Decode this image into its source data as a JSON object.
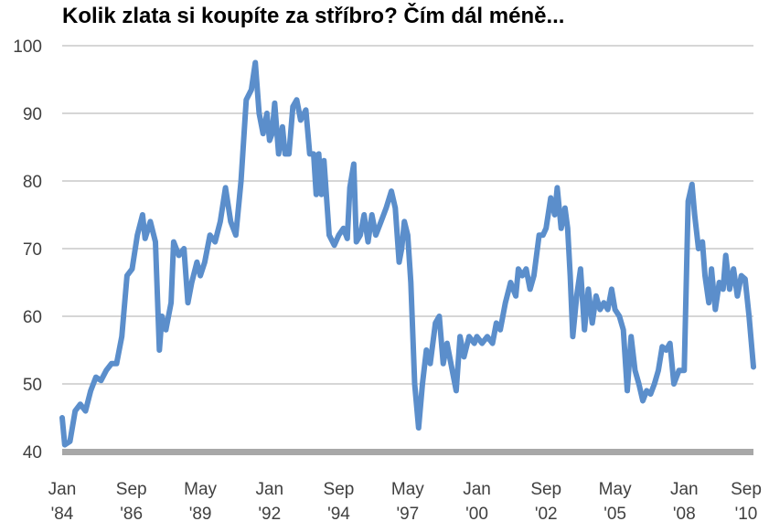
{
  "chart_data": {
    "type": "line",
    "title": "Kolik zlata si koupíte za stříbro? Čím dál méně...",
    "xlabel": "",
    "ylabel": "",
    "ylim": [
      40,
      100
    ],
    "y_ticks": [
      "40",
      "50",
      "60",
      "70",
      "80",
      "90",
      "100"
    ],
    "grid": true,
    "x_ticks": [
      {
        "month": "Jan",
        "year": "'84",
        "t": 1984.0
      },
      {
        "month": "Sep",
        "year": "'86",
        "t": 1986.67
      },
      {
        "month": "May",
        "year": "'89",
        "t": 1989.33
      },
      {
        "month": "Jan",
        "year": "'92",
        "t": 1992.0
      },
      {
        "month": "Sep",
        "year": "'94",
        "t": 1994.67
      },
      {
        "month": "May",
        "year": "'97",
        "t": 1997.33
      },
      {
        "month": "Jan",
        "year": "'00",
        "t": 2000.0
      },
      {
        "month": "Sep",
        "year": "'02",
        "t": 2002.67
      },
      {
        "month": "May",
        "year": "'05",
        "t": 2005.33
      },
      {
        "month": "Jan",
        "year": "'08",
        "t": 2008.0
      },
      {
        "month": "Sep",
        "year": "'10",
        "t": 2010.67
      }
    ],
    "series": [
      {
        "color": "#5b8ecb",
        "points": [
          [
            1984.0,
            45
          ],
          [
            1984.1,
            41
          ],
          [
            1984.3,
            41.5
          ],
          [
            1984.5,
            46
          ],
          [
            1984.7,
            47
          ],
          [
            1984.9,
            46
          ],
          [
            1985.1,
            49
          ],
          [
            1985.3,
            51
          ],
          [
            1985.5,
            50.5
          ],
          [
            1985.7,
            52
          ],
          [
            1985.9,
            53
          ],
          [
            1986.1,
            53
          ],
          [
            1986.3,
            57
          ],
          [
            1986.5,
            66
          ],
          [
            1986.7,
            67
          ],
          [
            1986.9,
            72
          ],
          [
            1987.1,
            75
          ],
          [
            1987.2,
            71.5
          ],
          [
            1987.4,
            74
          ],
          [
            1987.6,
            71
          ],
          [
            1987.75,
            55
          ],
          [
            1987.85,
            60
          ],
          [
            1988.0,
            58
          ],
          [
            1988.2,
            62
          ],
          [
            1988.3,
            71
          ],
          [
            1988.5,
            69
          ],
          [
            1988.7,
            70
          ],
          [
            1988.85,
            62
          ],
          [
            1989.0,
            65
          ],
          [
            1989.2,
            68
          ],
          [
            1989.33,
            66
          ],
          [
            1989.5,
            68
          ],
          [
            1989.7,
            72
          ],
          [
            1989.9,
            71
          ],
          [
            1990.1,
            74
          ],
          [
            1990.3,
            79
          ],
          [
            1990.5,
            74
          ],
          [
            1990.7,
            72
          ],
          [
            1990.9,
            80
          ],
          [
            1991.1,
            92
          ],
          [
            1991.3,
            93.5
          ],
          [
            1991.45,
            97.5
          ],
          [
            1991.6,
            90
          ],
          [
            1991.75,
            87
          ],
          [
            1991.9,
            90
          ],
          [
            1992.0,
            86
          ],
          [
            1992.1,
            87
          ],
          [
            1992.2,
            91.5
          ],
          [
            1992.35,
            84
          ],
          [
            1992.5,
            88
          ],
          [
            1992.6,
            84
          ],
          [
            1992.75,
            84
          ],
          [
            1992.9,
            91
          ],
          [
            1993.05,
            92
          ],
          [
            1993.2,
            89
          ],
          [
            1993.4,
            90.5
          ],
          [
            1993.55,
            84
          ],
          [
            1993.7,
            84
          ],
          [
            1993.8,
            78
          ],
          [
            1993.9,
            84
          ],
          [
            1994.0,
            78
          ],
          [
            1994.1,
            83
          ],
          [
            1994.3,
            72
          ],
          [
            1994.5,
            70.5
          ],
          [
            1994.67,
            72
          ],
          [
            1994.85,
            73
          ],
          [
            1995.0,
            71.5
          ],
          [
            1995.1,
            79
          ],
          [
            1995.25,
            82.5
          ],
          [
            1995.35,
            71
          ],
          [
            1995.5,
            72
          ],
          [
            1995.65,
            75
          ],
          [
            1995.8,
            71
          ],
          [
            1995.95,
            75
          ],
          [
            1996.1,
            72
          ],
          [
            1996.3,
            74
          ],
          [
            1996.5,
            76
          ],
          [
            1996.7,
            78.5
          ],
          [
            1996.85,
            76
          ],
          [
            1997.0,
            68
          ],
          [
            1997.1,
            70
          ],
          [
            1997.2,
            74
          ],
          [
            1997.33,
            72
          ],
          [
            1997.45,
            65
          ],
          [
            1997.6,
            50
          ],
          [
            1997.75,
            43.5
          ],
          [
            1997.9,
            50
          ],
          [
            1998.05,
            55
          ],
          [
            1998.2,
            53
          ],
          [
            1998.4,
            59
          ],
          [
            1998.55,
            60
          ],
          [
            1998.7,
            53
          ],
          [
            1998.85,
            56
          ],
          [
            1999.05,
            52
          ],
          [
            1999.2,
            49
          ],
          [
            1999.35,
            57
          ],
          [
            1999.5,
            54
          ],
          [
            1999.7,
            57
          ],
          [
            1999.9,
            56
          ],
          [
            2000.0,
            57
          ],
          [
            2000.2,
            56
          ],
          [
            2000.4,
            57
          ],
          [
            2000.6,
            56
          ],
          [
            2000.75,
            59
          ],
          [
            2000.9,
            58
          ],
          [
            2001.1,
            62
          ],
          [
            2001.3,
            65
          ],
          [
            2001.5,
            63
          ],
          [
            2001.6,
            67
          ],
          [
            2001.75,
            66
          ],
          [
            2001.9,
            67
          ],
          [
            2002.05,
            64
          ],
          [
            2002.2,
            66
          ],
          [
            2002.4,
            72
          ],
          [
            2002.55,
            72
          ],
          [
            2002.67,
            73
          ],
          [
            2002.85,
            77.5
          ],
          [
            2003.0,
            75
          ],
          [
            2003.1,
            79
          ],
          [
            2003.25,
            73
          ],
          [
            2003.4,
            76
          ],
          [
            2003.5,
            73
          ],
          [
            2003.6,
            66
          ],
          [
            2003.7,
            57
          ],
          [
            2003.85,
            63
          ],
          [
            2004.0,
            67
          ],
          [
            2004.15,
            58
          ],
          [
            2004.3,
            64
          ],
          [
            2004.45,
            59
          ],
          [
            2004.6,
            63
          ],
          [
            2004.75,
            61
          ],
          [
            2004.9,
            62
          ],
          [
            2005.05,
            61
          ],
          [
            2005.2,
            64
          ],
          [
            2005.33,
            61
          ],
          [
            2005.5,
            60
          ],
          [
            2005.65,
            58
          ],
          [
            2005.8,
            49
          ],
          [
            2005.95,
            57
          ],
          [
            2006.1,
            52
          ],
          [
            2006.25,
            50
          ],
          [
            2006.4,
            47.5
          ],
          [
            2006.55,
            49
          ],
          [
            2006.7,
            48.5
          ],
          [
            2006.85,
            50
          ],
          [
            2007.0,
            52
          ],
          [
            2007.15,
            55.5
          ],
          [
            2007.3,
            55
          ],
          [
            2007.45,
            56
          ],
          [
            2007.6,
            50
          ],
          [
            2007.8,
            52
          ],
          [
            2008.0,
            52
          ],
          [
            2008.15,
            77
          ],
          [
            2008.3,
            79.5
          ],
          [
            2008.4,
            75
          ],
          [
            2008.55,
            70
          ],
          [
            2008.7,
            71
          ],
          [
            2008.8,
            66
          ],
          [
            2008.95,
            62
          ],
          [
            2009.05,
            67
          ],
          [
            2009.2,
            61
          ],
          [
            2009.35,
            65
          ],
          [
            2009.5,
            64
          ],
          [
            2009.6,
            69
          ],
          [
            2009.75,
            64
          ],
          [
            2009.9,
            67
          ],
          [
            2010.05,
            63
          ],
          [
            2010.2,
            66
          ],
          [
            2010.35,
            65.5
          ],
          [
            2010.5,
            60
          ],
          [
            2010.67,
            52.5
          ]
        ]
      }
    ]
  }
}
